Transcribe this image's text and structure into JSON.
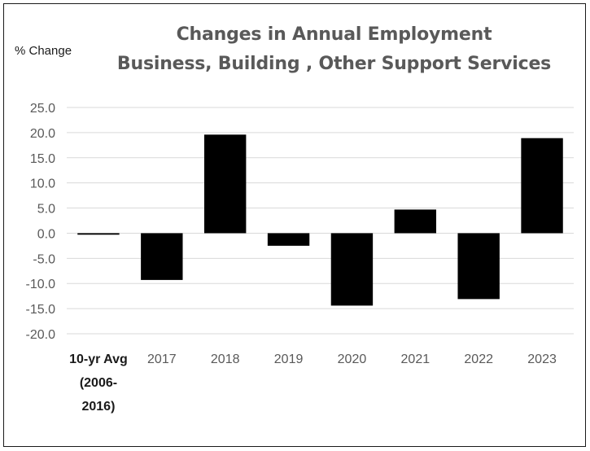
{
  "chart_data": {
    "type": "bar",
    "title": [
      "Changes in Annual Employment",
      "Business, Building , Other Support Services"
    ],
    "ylabel": "% Change",
    "xlabel": "",
    "categories": [
      [
        "10-yr Avg",
        "(2006-",
        "2016)"
      ],
      [
        "2017"
      ],
      [
        "2018"
      ],
      [
        "2019"
      ],
      [
        "2020"
      ],
      [
        "2021"
      ],
      [
        "2022"
      ],
      [
        "2023"
      ]
    ],
    "values": [
      -0.3,
      -9.3,
      19.6,
      -2.5,
      -14.4,
      4.7,
      -13.1,
      18.9
    ],
    "y_ticks": [
      "25.0",
      "20.0",
      "15.0",
      "10.0",
      "5.0",
      "0.0",
      "-5.0",
      "-10.0",
      "-15.0",
      "-20.0"
    ],
    "ylim": [
      -20,
      25
    ],
    "grid": true,
    "legend": "none",
    "colors": {
      "bar": "#000000",
      "grid": "#d9d9d9",
      "title": "#595959",
      "tick": "#595959"
    }
  }
}
